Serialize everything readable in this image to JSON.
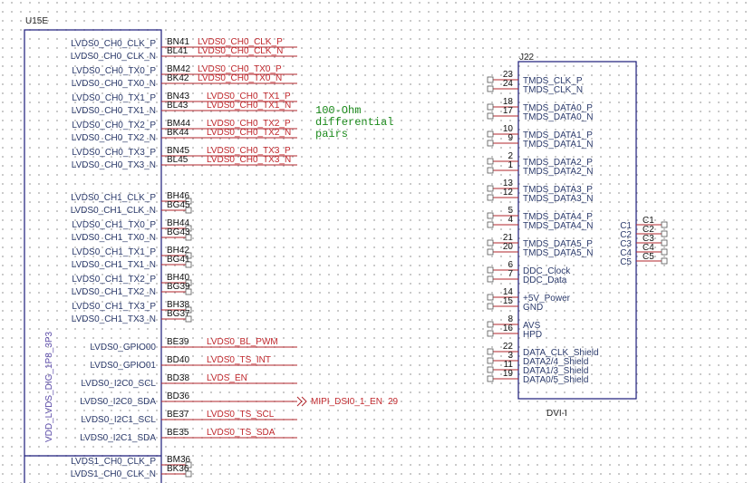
{
  "u15e": {
    "ref": "U15E",
    "power_label": "VDD_LVDS_DIG_1P8_3P3",
    "pins": [
      {
        "name": "LVDS0_CH0_CLK_P",
        "num": "BN41",
        "net": "LVDS0_CH0_CLK_P"
      },
      {
        "name": "LVDS0_CH0_CLK_N",
        "num": "BL41",
        "net": "LVDS0_CH0_CLK_N"
      },
      {
        "name": "LVDS0_CH0_TX0_P",
        "num": "BM42",
        "net": "LVDS0_CH0_TX0_P"
      },
      {
        "name": "LVDS0_CH0_TX0_N",
        "num": "BK42",
        "net": "LVDS0_CH0_TX0_N"
      },
      {
        "name": "LVDS0_CH0_TX1_P",
        "num": "BN43",
        "net": "LVDS0_CH0_TX1_P"
      },
      {
        "name": "LVDS0_CH0_TX1_N",
        "num": "BL43",
        "net": "LVDS0_CH0_TX1_N"
      },
      {
        "name": "LVDS0_CH0_TX2_P",
        "num": "BM44",
        "net": "LVDS0_CH0_TX2_P"
      },
      {
        "name": "LVDS0_CH0_TX2_N",
        "num": "BK44",
        "net": "LVDS0_CH0_TX2_N"
      },
      {
        "name": "LVDS0_CH0_TX3_P",
        "num": "BN45",
        "net": "LVDS0_CH0_TX3_P"
      },
      {
        "name": "LVDS0_CH0_TX3_N",
        "num": "BL45",
        "net": "LVDS0_CH0_TX3_N"
      },
      {
        "name": "LVDS0_CH1_CLK_P",
        "num": "BH46",
        "net": null
      },
      {
        "name": "LVDS0_CH1_CLK_N",
        "num": "BG45",
        "net": null
      },
      {
        "name": "LVDS0_CH1_TX0_P",
        "num": "BH44",
        "net": null
      },
      {
        "name": "LVDS0_CH1_TX0_N",
        "num": "BG43",
        "net": null
      },
      {
        "name": "LVDS0_CH1_TX1_P",
        "num": "BH42",
        "net": null
      },
      {
        "name": "LVDS0_CH1_TX1_N",
        "num": "BG41",
        "net": null
      },
      {
        "name": "LVDS0_CH1_TX2_P",
        "num": "BH40",
        "net": null
      },
      {
        "name": "LVDS0_CH1_TX2_N",
        "num": "BG39",
        "net": null
      },
      {
        "name": "LVDS0_CH1_TX3_P",
        "num": "BH38",
        "net": null
      },
      {
        "name": "LVDS0_CH1_TX3_N",
        "num": "BG37",
        "net": null
      },
      {
        "name": "LVDS0_GPIO00",
        "num": "BE39",
        "net": "LVDS0_BL_PWM"
      },
      {
        "name": "LVDS0_GPIO01",
        "num": "BD40",
        "net": "LVDS0_TS_INT"
      },
      {
        "name": "LVDS0_I2C0_SCL",
        "num": "BD38",
        "net": "LVDS_EN"
      },
      {
        "name": "LVDS0_I2C0_SDA",
        "num": "BD36",
        "net": null
      },
      {
        "name": "LVDS0_I2C1_SCL",
        "num": "BE37",
        "net": "LVDS0_TS_SCL"
      },
      {
        "name": "LVDS0_I2C1_SDA",
        "num": "BE35",
        "net": "LVDS0_TS_SDA"
      },
      {
        "name": "LVDS1_CH0_CLK_P",
        "num": "BM36",
        "net": null
      },
      {
        "name": "LVDS1_CH0_CLK_N",
        "num": "BK36",
        "net": null
      }
    ],
    "offpage": {
      "net": "MIPI_DSI0_1_EN",
      "page": "29"
    }
  },
  "note": [
    "100-Ohm",
    "differential",
    "pairs"
  ],
  "j22": {
    "ref": "J22",
    "value": "DVI-I",
    "pins": [
      {
        "name": "TMDS_CLK_P",
        "num": "23"
      },
      {
        "name": "TMDS_CLK_N",
        "num": "24"
      },
      {
        "name": "TMDS_DATA0_P",
        "num": "18"
      },
      {
        "name": "TMDS_DATA0_N",
        "num": "17"
      },
      {
        "name": "TMDS_DATA1_P",
        "num": "10"
      },
      {
        "name": "TMDS_DATA1_N",
        "num": "9"
      },
      {
        "name": "TMDS_DATA2_P",
        "num": "2"
      },
      {
        "name": "TMDS_DATA2_N",
        "num": "1"
      },
      {
        "name": "TMDS_DATA3_P",
        "num": "13"
      },
      {
        "name": "TMDS_DATA3_N",
        "num": "12"
      },
      {
        "name": "TMDS_DATA4_P",
        "num": "5"
      },
      {
        "name": "TMDS_DATA4_N",
        "num": "4"
      },
      {
        "name": "TMDS_DATA5_P",
        "num": "21"
      },
      {
        "name": "TMDS_DATA5_N",
        "num": "20"
      },
      {
        "name": "DDC_Clock",
        "num": "6"
      },
      {
        "name": "DDC_Data",
        "num": "7"
      },
      {
        "name": "+5V_Power",
        "num": "14"
      },
      {
        "name": "GND",
        "num": "15"
      },
      {
        "name": "AVS",
        "num": "8"
      },
      {
        "name": "HPD",
        "num": "16"
      },
      {
        "name": "DATA_CLK_Shield",
        "num": "22"
      },
      {
        "name": "DATA2/4_Shield",
        "num": "3"
      },
      {
        "name": "DATA1/3_Shield",
        "num": "11"
      },
      {
        "name": "DATA0/5_Shield",
        "num": "19"
      }
    ],
    "right_pins": [
      {
        "name": "C1",
        "num": "C1"
      },
      {
        "name": "C2",
        "num": "C2"
      },
      {
        "name": "C3",
        "num": "C3"
      },
      {
        "name": "C4",
        "num": "C4"
      },
      {
        "name": "C5",
        "num": "C5"
      }
    ]
  },
  "colors": {
    "wire": "#b0252b",
    "body": "#1a1a7a",
    "net": "#c0282d",
    "note": "#1c8a1c"
  }
}
